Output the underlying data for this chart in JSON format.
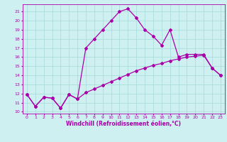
{
  "xlabel": "Windchill (Refroidissement éolien,°C)",
  "bg_color": "#cff0f0",
  "grid_color": "#aadddd",
  "line_color": "#aa00aa",
  "xlim": [
    -0.5,
    23.5
  ],
  "ylim": [
    9.8,
    21.8
  ],
  "yticks": [
    10,
    11,
    12,
    13,
    14,
    15,
    16,
    17,
    18,
    19,
    20,
    21
  ],
  "xticks": [
    0,
    1,
    2,
    3,
    4,
    5,
    6,
    7,
    8,
    9,
    10,
    11,
    12,
    13,
    14,
    15,
    16,
    17,
    18,
    19,
    20,
    21,
    22,
    23
  ],
  "series1_x": [
    0,
    1,
    2,
    3,
    4,
    5,
    6,
    7,
    8,
    9,
    10,
    11,
    12,
    13,
    14,
    15,
    16,
    17,
    18,
    19,
    20,
    21,
    22,
    23
  ],
  "series1_y": [
    11.9,
    10.6,
    11.6,
    11.5,
    10.4,
    11.9,
    11.4,
    17.0,
    18.0,
    19.0,
    20.0,
    21.0,
    21.3,
    20.3,
    19.0,
    18.3,
    17.3,
    19.0,
    16.0,
    16.3,
    16.3,
    16.3,
    14.8,
    14.0
  ],
  "series2_x": [
    0,
    1,
    2,
    3,
    4,
    5,
    6,
    7,
    8,
    9,
    10,
    11,
    12,
    13,
    14,
    15,
    16,
    17,
    18,
    19,
    20,
    21,
    22,
    23
  ],
  "series2_y": [
    11.9,
    10.6,
    11.6,
    11.5,
    10.4,
    11.9,
    11.4,
    12.1,
    12.5,
    12.9,
    13.3,
    13.7,
    14.1,
    14.5,
    14.8,
    15.1,
    15.3,
    15.6,
    15.8,
    16.0,
    16.1,
    16.2,
    14.8,
    14.0
  ],
  "marker": "D",
  "markersize": 2,
  "linewidth": 0.9,
  "tick_fontsize": 4.5,
  "xlabel_fontsize": 5.5
}
